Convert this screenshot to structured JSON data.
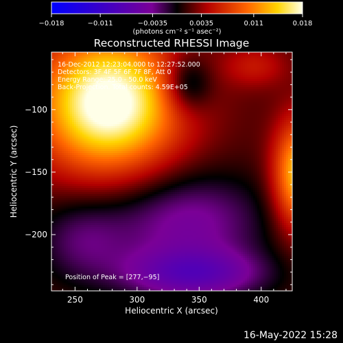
{
  "chart_data": {
    "type": "heatmap",
    "title": "Reconstructed RHESSI Image",
    "xlabel": "Heliocentric X (arcsec)",
    "ylabel": "Heliocentric Y (arcsec)",
    "xlim": [
      231,
      425
    ],
    "ylim": [
      -245,
      -54
    ],
    "x_ticks": [
      250,
      300,
      350,
      400
    ],
    "y_ticks": [
      -100,
      -150,
      -200
    ],
    "colorbar": {
      "ticks": [
        "−0.018",
        "−0.011",
        "−0.0035",
        "0.0035",
        "0.011",
        "0.018"
      ],
      "label": "(photons cm⁻² s⁻¹ asec⁻²)",
      "range": [
        -0.018,
        0.018
      ]
    },
    "info_lines": [
      "16-Dec-2012 12:23:04.000 to 12:27:52.000",
      "Detectors: 3F 4F 5F 6F 7F 8F, Att 0",
      "Energy Range: 25.0 - 50.0 keV",
      "Back-Projection. Total counts: 4.59E+05"
    ],
    "peak_label": "Position of Peak = [277,−95]",
    "sources": [
      {
        "x": 277,
        "y": -95,
        "peak": 0.018,
        "sx": 40,
        "sy": 38
      },
      {
        "x": 430,
        "y": -152,
        "peak": 0.0125,
        "sx": 14,
        "sy": 30
      },
      {
        "x": 395,
        "y": -65,
        "peak": 0.0035,
        "sx": 18,
        "sy": 12
      },
      {
        "x": 340,
        "y": -190,
        "peak": -0.006,
        "sx": 45,
        "sy": 28
      },
      {
        "x": 345,
        "y": -232,
        "peak": -0.008,
        "sx": 40,
        "sy": 14
      },
      {
        "x": 255,
        "y": -205,
        "peak": -0.004,
        "sx": 26,
        "sy": 24
      },
      {
        "x": 340,
        "y": -80,
        "peak": -0.006,
        "sx": 14,
        "sy": 16
      }
    ],
    "baseline": 0.0018,
    "grid": false
  },
  "footer_date": "16-May-2022 15:28"
}
